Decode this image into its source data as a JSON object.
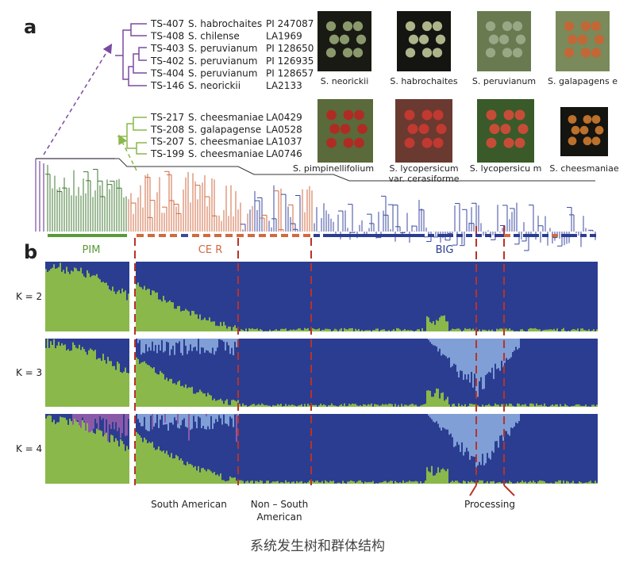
{
  "panel_labels": [
    "a",
    "b"
  ],
  "tree_labels": {
    "purple": [
      [
        "TS-407",
        "S. habrochaites",
        "PI 247087"
      ],
      [
        "TS-408",
        "S. chilense",
        "LA1969"
      ],
      [
        "TS-403",
        "S. peruvianum",
        "PI 128650"
      ],
      [
        "TS-402",
        "S. peruvianum",
        "PI 126935"
      ],
      [
        "TS-404",
        "S. peruvianum",
        "PI 128657"
      ],
      [
        "TS-146",
        "S. neorickii",
        "LA2133"
      ]
    ],
    "green": [
      [
        "TS-217",
        "S. cheesmaniae",
        "LA0429"
      ],
      [
        "TS-208",
        "S. galapagense",
        "LA0528"
      ],
      [
        "TS-207",
        "S. cheesmaniae",
        "LA1037"
      ],
      [
        "TS-199",
        "S. cheesmaniae",
        "LA0746"
      ]
    ]
  },
  "photos": [
    [
      "S. neorickii"
    ],
    [
      "S. habrochaites"
    ],
    [
      "S. peruvianum"
    ],
    [
      "S. galapagens e"
    ],
    [
      "S. pimpinellifolium"
    ],
    [
      "S. lycopersicum",
      "var. cerasiforme"
    ],
    [
      "S. lycopersicu m"
    ],
    [
      "S. cheesmaniae"
    ]
  ],
  "groups": [
    "PIM",
    "CE R",
    "BIG"
  ],
  "k_labels": [
    "K = 2",
    "K = 3",
    "K = 4"
  ],
  "bottom_labels": [
    [
      "South American"
    ],
    [
      "Non – South",
      "American"
    ],
    [
      "Processing"
    ]
  ],
  "caption": "系统发生树和群体结构"
}
